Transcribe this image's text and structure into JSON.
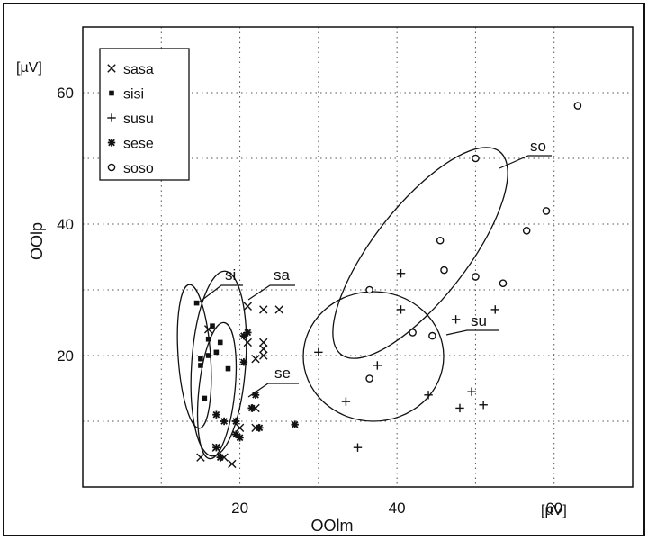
{
  "chart_data": {
    "type": "scatter",
    "xlabel": "OOlm",
    "ylabel": "OOlp",
    "xunit": "[µV]",
    "yunit": "[µV]",
    "xlim": [
      0,
      70
    ],
    "ylim": [
      0,
      70
    ],
    "xticks": [
      20,
      40,
      60
    ],
    "yticks": [
      20,
      40,
      60
    ],
    "x_gridlines": [
      10,
      20,
      30,
      40,
      50,
      60
    ],
    "y_gridlines": [
      10,
      20,
      30,
      40,
      50,
      60
    ],
    "grid": true,
    "legend_position": "top-left",
    "series": [
      {
        "name": "sasa",
        "marker": "x",
        "points": [
          [
            15,
            4.5
          ],
          [
            16,
            24
          ],
          [
            17,
            6
          ],
          [
            18,
            4.5
          ],
          [
            19,
            3.5
          ],
          [
            20,
            9
          ],
          [
            21,
            27.5
          ],
          [
            21,
            22
          ],
          [
            22,
            19.5
          ],
          [
            22,
            9
          ],
          [
            22,
            12
          ],
          [
            23,
            27
          ],
          [
            23,
            22
          ],
          [
            23,
            21
          ],
          [
            23,
            20
          ],
          [
            25,
            27
          ]
        ]
      },
      {
        "name": "sisi",
        "marker": "square",
        "points": [
          [
            14.5,
            28
          ],
          [
            15,
            19.5
          ],
          [
            15,
            18.5
          ],
          [
            15.5,
            13.5
          ],
          [
            16,
            22.5
          ],
          [
            16,
            20
          ],
          [
            16.5,
            24.5
          ],
          [
            17,
            20.5
          ],
          [
            17.5,
            22
          ],
          [
            18.5,
            18
          ]
        ]
      },
      {
        "name": "susu",
        "marker": "plus",
        "points": [
          [
            30,
            20.5
          ],
          [
            33.5,
            13
          ],
          [
            35,
            6
          ],
          [
            37.5,
            18.5
          ],
          [
            40.5,
            32.5
          ],
          [
            40.5,
            27
          ],
          [
            44,
            14
          ],
          [
            47.5,
            25.5
          ],
          [
            48,
            12
          ],
          [
            49.5,
            14.5
          ],
          [
            51,
            12.5
          ],
          [
            52.5,
            27
          ]
        ]
      },
      {
        "name": "sese",
        "marker": "asterisk",
        "points": [
          [
            17,
            11
          ],
          [
            17,
            6
          ],
          [
            17.5,
            4.5
          ],
          [
            18,
            10
          ],
          [
            19.5,
            10
          ],
          [
            19.5,
            8
          ],
          [
            20,
            7.5
          ],
          [
            20.5,
            19
          ],
          [
            20.5,
            23
          ],
          [
            21,
            23.5
          ],
          [
            21.5,
            12
          ],
          [
            22,
            14
          ],
          [
            22.5,
            9
          ],
          [
            27,
            9.5
          ]
        ]
      },
      {
        "name": "soso",
        "marker": "circle",
        "points": [
          [
            36.5,
            16.5
          ],
          [
            36.5,
            30
          ],
          [
            42,
            23.5
          ],
          [
            44.5,
            23
          ],
          [
            45.5,
            37.5
          ],
          [
            46,
            33
          ],
          [
            50,
            50
          ],
          [
            50,
            32
          ],
          [
            53.5,
            31
          ],
          [
            56.5,
            39
          ],
          [
            59,
            42
          ],
          [
            63,
            58
          ]
        ]
      }
    ],
    "ellipse_labels": [
      "si",
      "sa",
      "se",
      "so",
      "su"
    ]
  }
}
